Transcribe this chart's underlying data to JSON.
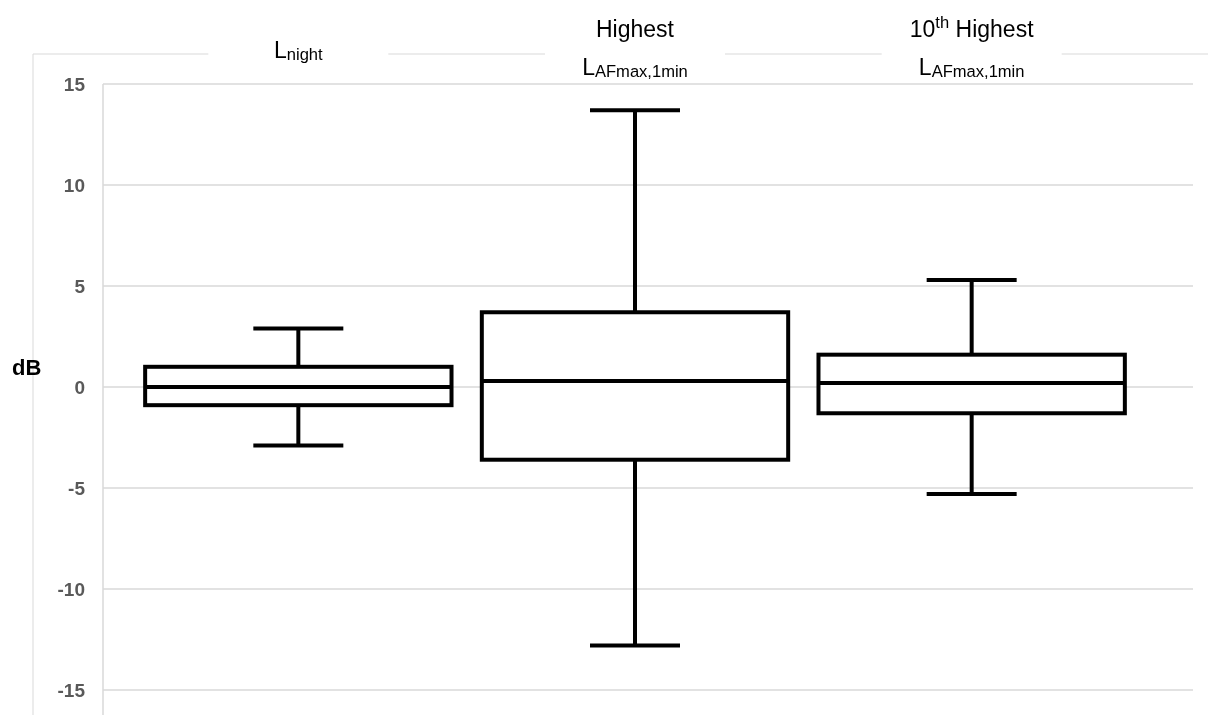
{
  "chart_data": {
    "type": "box",
    "ylabel": "dB",
    "categories": [
      "L$_{night}$",
      "Highest\nL$_{AFmax,1min}$",
      "10$^{th}$ Highest\nL$_{AFmax,1min}$"
    ],
    "boxes": [
      {
        "low": -2.9,
        "q1": -0.9,
        "median": 0,
        "q3": 1.0,
        "high": 2.9
      },
      {
        "low": -12.8,
        "q1": -3.6,
        "median": 0.3,
        "q3": 3.7,
        "high": 13.7
      },
      {
        "low": -5.3,
        "q1": -1.3,
        "median": 0.2,
        "q3": 1.6,
        "high": 5.3
      }
    ],
    "color": "#000000",
    "ylim": [
      -15,
      15
    ],
    "yticks": [
      -15,
      -10,
      -5,
      0,
      5,
      10,
      15
    ],
    "grid": "y"
  }
}
